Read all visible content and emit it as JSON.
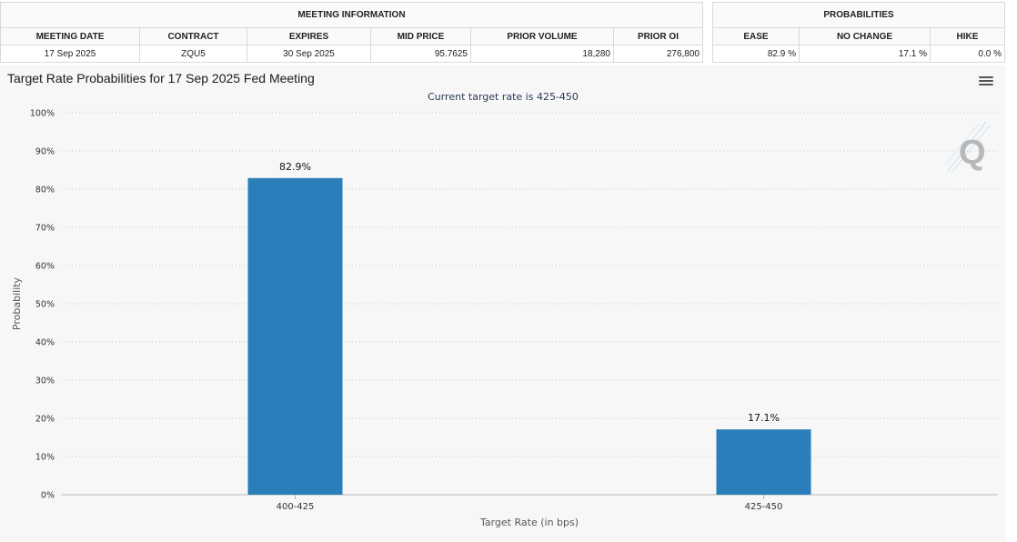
{
  "meeting_table": {
    "group_title": "MEETING INFORMATION",
    "headers": [
      "MEETING DATE",
      "CONTRACT",
      "EXPIRES",
      "MID PRICE",
      "PRIOR VOLUME",
      "PRIOR OI"
    ],
    "row": [
      "17 Sep 2025",
      "ZQU5",
      "30 Sep 2025",
      "95.7625",
      "18,280",
      "276,800"
    ]
  },
  "probabilities_table": {
    "group_title": "PROBABILITIES",
    "headers": [
      "EASE",
      "NO CHANGE",
      "HIKE"
    ],
    "row": [
      "82.9 %",
      "17.1 %",
      "0.0 %"
    ]
  },
  "chart_data": {
    "type": "bar",
    "title": "Target Rate Probabilities for 17 Sep 2025 Fed Meeting",
    "subtitle": "Current target rate is 425-450",
    "xlabel": "Target Rate (in bps)",
    "ylabel": "Probability",
    "categories": [
      "400-425",
      "425-450"
    ],
    "values": [
      82.9,
      17.1
    ],
    "data_labels": [
      "82.9%",
      "17.1%"
    ],
    "ylim": [
      0,
      100
    ],
    "yticks": [
      0,
      10,
      20,
      30,
      40,
      50,
      60,
      70,
      80,
      90,
      100
    ],
    "ytick_suffix": "%",
    "grid": true,
    "legend": "none",
    "bar_color": "#2a7fba"
  },
  "icons": {
    "menu": "hamburger-menu-icon",
    "watermark": "q-logo-icon"
  }
}
